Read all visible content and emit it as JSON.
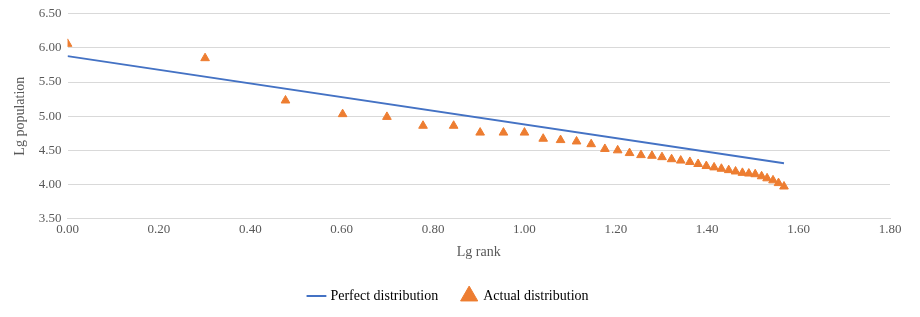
{
  "chart_data": {
    "type": "scatter",
    "x_label": "Lg rank",
    "y_label": "Lg population",
    "xlim": [
      0,
      1.8
    ],
    "xticks": [
      {
        "value": 0,
        "label": "0.00"
      },
      {
        "value": 0.2,
        "label": "0.20"
      },
      {
        "value": 0.4,
        "label": "0.40"
      },
      {
        "value": 0.6,
        "label": "0.60"
      },
      {
        "value": 0.8,
        "label": "0.80"
      },
      {
        "value": 1,
        "label": "1.00"
      },
      {
        "value": 1.2,
        "label": "1.20"
      },
      {
        "value": 1.4,
        "label": "1.40"
      },
      {
        "value": 1.6,
        "label": "1.60"
      },
      {
        "value": 1.8,
        "label": "1.80"
      }
    ],
    "ylim": [
      3.5,
      6.5
    ],
    "yticks": [
      {
        "value": 3.5,
        "label": "3.50"
      },
      {
        "value": 4,
        "label": "4.00"
      },
      {
        "value": 4.5,
        "label": "4.50"
      },
      {
        "value": 5,
        "label": "5.00"
      },
      {
        "value": 5.5,
        "label": "5.50"
      },
      {
        "value": 6,
        "label": "6.00"
      },
      {
        "value": 6.5,
        "label": "6.50"
      }
    ],
    "grid": "y",
    "legend": "bottom",
    "series": [
      {
        "name": "Perfect distribution",
        "type": "line",
        "color": "#4472c4",
        "line_style": "solid",
        "x": [
          0,
          1.568
        ],
        "values": [
          5.88,
          4.31
        ]
      },
      {
        "name": "Actual distribution",
        "type": "scatter",
        "color": "#ed7d31",
        "marker": "triangle",
        "x": [
          0,
          0.301,
          0.477,
          0.602,
          0.699,
          0.778,
          0.845,
          0.903,
          0.954,
          1.0,
          1.041,
          1.079,
          1.114,
          1.146,
          1.176,
          1.204,
          1.23,
          1.255,
          1.279,
          1.301,
          1.322,
          1.342,
          1.362,
          1.38,
          1.398,
          1.415,
          1.431,
          1.447,
          1.462,
          1.477,
          1.491,
          1.505,
          1.519,
          1.531,
          1.544,
          1.556,
          1.568
        ],
        "values": [
          6.06,
          5.85,
          5.23,
          5.03,
          4.99,
          4.86,
          4.86,
          4.76,
          4.76,
          4.76,
          4.67,
          4.65,
          4.63,
          4.59,
          4.52,
          4.5,
          4.46,
          4.43,
          4.42,
          4.4,
          4.37,
          4.35,
          4.33,
          4.3,
          4.27,
          4.25,
          4.23,
          4.21,
          4.19,
          4.17,
          4.16,
          4.15,
          4.12,
          4.09,
          4.06,
          4.02,
          3.97
        ]
      }
    ]
  }
}
